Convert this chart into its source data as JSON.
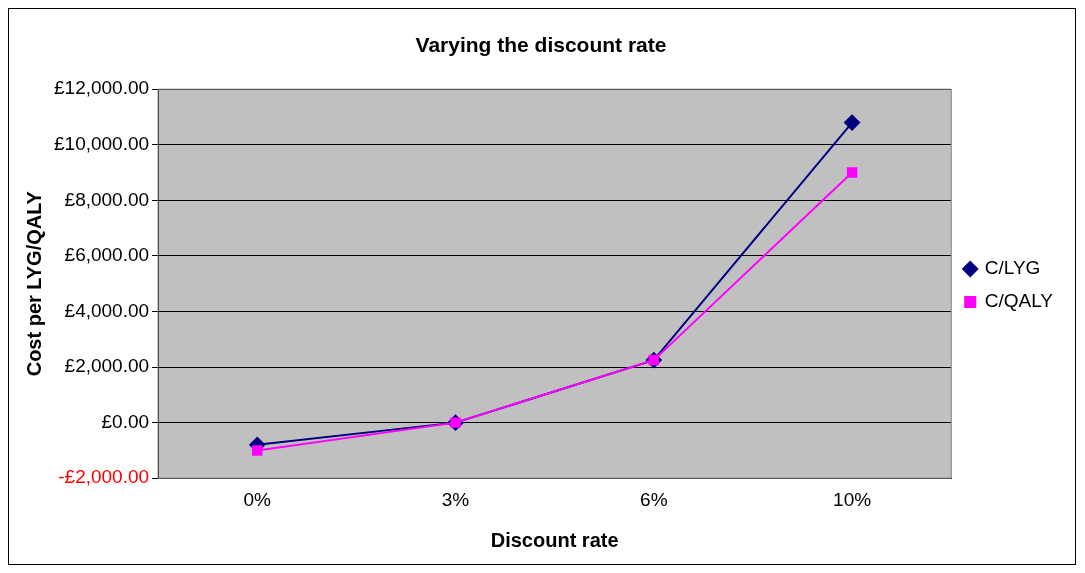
{
  "chart_data": {
    "type": "line",
    "title": "Varying the discount rate",
    "xlabel": "Discount rate",
    "ylabel": "Cost per LYG/QALY",
    "categories": [
      "0%",
      "3%",
      "6%",
      "10%"
    ],
    "series": [
      {
        "name": "C/LYG",
        "color": "#000080",
        "marker": "diamond",
        "values": [
          -800,
          0,
          2250,
          10800
        ]
      },
      {
        "name": "C/QALY",
        "color": "#ff00ff",
        "marker": "square",
        "values": [
          -1000,
          0,
          2250,
          9000
        ]
      }
    ],
    "ylim": [
      -2000,
      12000
    ],
    "yticks": [
      {
        "value": -2000,
        "label": "-£2,000.00"
      },
      {
        "value": 0,
        "label": "£0.00"
      },
      {
        "value": 2000,
        "label": "£2,000.00"
      },
      {
        "value": 4000,
        "label": "£4,000.00"
      },
      {
        "value": 6000,
        "label": "£6,000.00"
      },
      {
        "value": 8000,
        "label": "£8,000.00"
      },
      {
        "value": 10000,
        "label": "£10,000.00"
      },
      {
        "value": 12000,
        "label": "£12,000.00"
      }
    ],
    "grid": "y",
    "legend": "right",
    "line_style": "solid"
  }
}
